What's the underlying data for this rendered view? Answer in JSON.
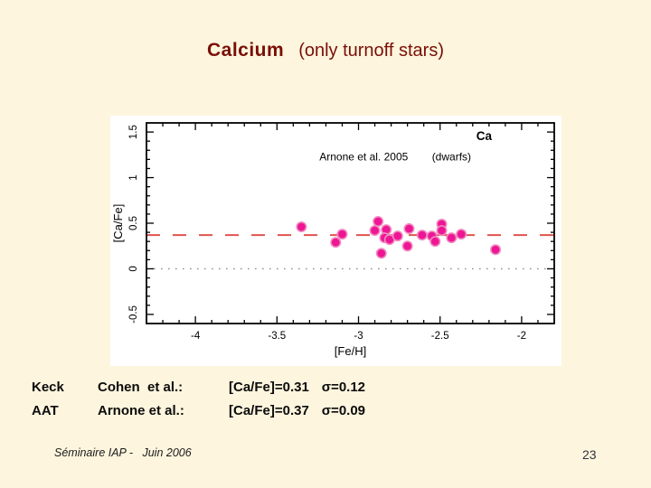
{
  "title": {
    "main": "Calcium",
    "sub": "(only turnoff stars)"
  },
  "colors": {
    "background": "#fdf5de",
    "title": "#7a0e06",
    "panel": "#ffffff",
    "axis": "#000000",
    "marker_fill": "#ee1695",
    "marker_halo": "#f08ac0",
    "mean_line": "#e0534f",
    "zero_line": "#8c8c8c",
    "page_number": "#32323e"
  },
  "stats": {
    "rows": [
      {
        "source": "Keck",
        "reference": "Cohen  et al.:",
        "ca_fe": "[Ca/Fe]=0.31",
        "sigma": "σ=0.12"
      },
      {
        "source": "AAT",
        "reference": "Arnone et al.:",
        "ca_fe": "[Ca/Fe]=0.37",
        "sigma": "σ=0.09"
      }
    ]
  },
  "footer": {
    "left": "Séminaire IAP -   Juin 2006",
    "page_number": "23"
  },
  "chart_data": {
    "type": "scatter",
    "title": "",
    "xlabel": "[Fe/H]",
    "ylabel": "[Ca/Fe]",
    "xlim": [
      -4.3,
      -1.8
    ],
    "ylim": [
      -0.6,
      1.6
    ],
    "grid": false,
    "x_major_ticks": [
      -4,
      -3.5,
      -3,
      -2.5,
      -2
    ],
    "x_tick_labels": [
      "-4",
      "-3.5",
      "-3",
      "-2.5",
      "-2"
    ],
    "y_major_ticks": [
      -0.5,
      0,
      0.5,
      1,
      1.5
    ],
    "y_tick_labels": [
      "-0.5",
      "0",
      "0.5",
      "1",
      "1.5"
    ],
    "minor_tick_step": 0.1,
    "annotations": [
      {
        "text": "Arnone et al. 2005",
        "x": -3.24,
        "y": 1.23,
        "anchor": "start",
        "size": 12,
        "bold": false
      },
      {
        "text": "(dwarfs)",
        "x": -2.55,
        "y": 1.23,
        "anchor": "start",
        "size": 12,
        "bold": false
      },
      {
        "text": "Ca",
        "x": -2.23,
        "y": 1.45,
        "anchor": "middle",
        "size": 13.5,
        "bold": true
      }
    ],
    "reference_lines": [
      {
        "name": "zero-dotted-line",
        "y": 0.0,
        "color": "#8c8c8c",
        "width": 1.4,
        "dash": "1.6 6.4"
      },
      {
        "name": "mean-dashed-line",
        "y": 0.37,
        "color": "#e0534f",
        "width": 2,
        "dash": "15 14"
      }
    ],
    "series": [
      {
        "name": "Arnone et al. 2005 (dwarfs)",
        "marker": {
          "shape": "circle",
          "radius": 5.2,
          "fill": "#ee1695",
          "stroke": "#f08ac0"
        },
        "x": [
          -3.35,
          -3.14,
          -3.1,
          -2.9,
          -2.88,
          -2.83,
          -2.84,
          -2.81,
          -2.86,
          -2.76,
          -2.69,
          -2.7,
          -2.61,
          -2.55,
          -2.53,
          -2.49,
          -2.49,
          -2.43,
          -2.37,
          -2.16
        ],
        "y": [
          0.46,
          0.29,
          0.38,
          0.42,
          0.52,
          0.43,
          0.34,
          0.32,
          0.17,
          0.36,
          0.44,
          0.25,
          0.37,
          0.36,
          0.3,
          0.49,
          0.42,
          0.34,
          0.38,
          0.21
        ]
      }
    ]
  }
}
